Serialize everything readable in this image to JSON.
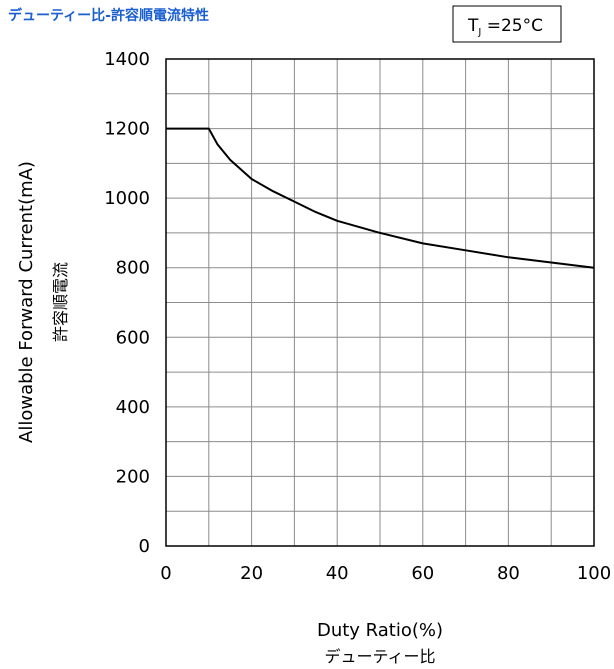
{
  "page": {
    "title": "デューティー比-許容順電流特性",
    "title_color": "#1a5fd1",
    "condition": {
      "text_main": "T",
      "text_sub": "J",
      "text_rest": " =25°C"
    }
  },
  "chart_data": {
    "type": "line",
    "title": "デューティー比-許容順電流特性",
    "xlabel": "Duty Ratio(%)",
    "xlabel_jp": "デューティー比",
    "ylabel": "Allowable Forward Current(mA)",
    "ylabel_jp": "許容順電流",
    "xlim": [
      0,
      100
    ],
    "ylim": [
      0,
      1400
    ],
    "x_ticks": [
      "0",
      "20",
      "40",
      "60",
      "80",
      "100"
    ],
    "y_ticks": [
      "0",
      "200",
      "400",
      "600",
      "800",
      "1000",
      "1200",
      "1400"
    ],
    "x_tick_values": [
      0,
      20,
      40,
      60,
      80,
      100
    ],
    "y_tick_values": [
      0,
      200,
      400,
      600,
      800,
      1000,
      1200,
      1400
    ],
    "grid": true,
    "x_minor_grid_step": 10,
    "y_minor_grid_step": 100,
    "line_color": "#000000",
    "series": [
      {
        "x": [
          0,
          10,
          12,
          15,
          20,
          25,
          30,
          35,
          40,
          50,
          60,
          70,
          80,
          90,
          100
        ],
        "y": [
          1200,
          1200,
          1155,
          1110,
          1055,
          1020,
          990,
          960,
          935,
          900,
          870,
          850,
          830,
          815,
          800
        ]
      }
    ]
  }
}
